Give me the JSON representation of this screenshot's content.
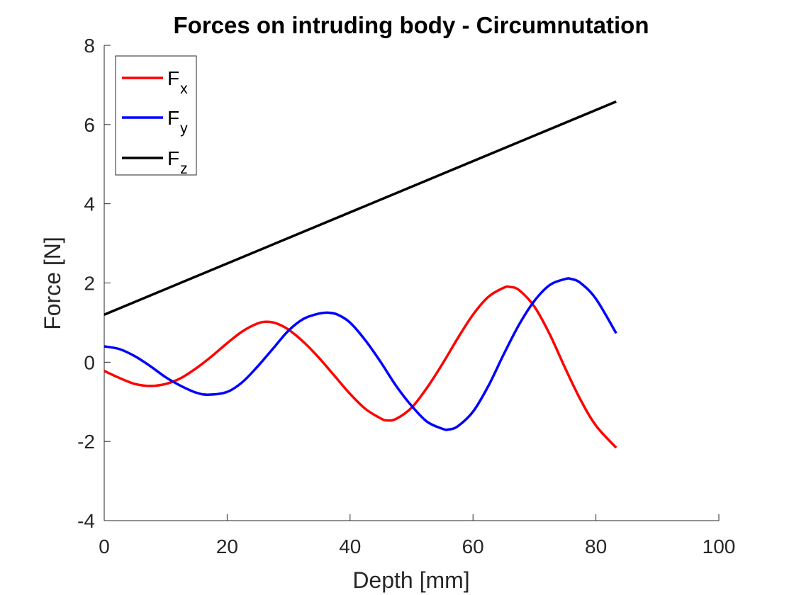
{
  "chart_data": {
    "type": "line",
    "title": "Forces on intruding body - Circumnutation",
    "xlabel": "Depth [mm]",
    "ylabel": "Force [N]",
    "xlim": [
      0,
      100
    ],
    "ylim": [
      -4,
      8
    ],
    "xticks": [
      "0",
      "20",
      "40",
      "60",
      "80",
      "100"
    ],
    "yticks": [
      "-4",
      "-2",
      "0",
      "2",
      "4",
      "6",
      "8"
    ],
    "grid": false,
    "legend_position": "top-left",
    "series": [
      {
        "name": "F",
        "subscript": "x",
        "color": "#ff0000",
        "x": [
          0,
          2.5,
          5,
          7.5,
          10,
          12.5,
          15,
          17.5,
          20,
          22.5,
          25,
          26.5,
          28,
          30,
          32.5,
          35,
          37.5,
          40,
          42.5,
          45,
          46,
          47.5,
          50,
          52.5,
          55,
          57.5,
          60,
          62.5,
          65,
          66,
          67.5,
          70,
          72.5,
          75,
          77.5,
          80,
          83.3
        ],
        "y": [
          -0.22,
          -0.4,
          -0.55,
          -0.6,
          -0.55,
          -0.4,
          -0.15,
          0.15,
          0.48,
          0.78,
          0.98,
          1.02,
          0.98,
          0.82,
          0.5,
          0.1,
          -0.35,
          -0.8,
          -1.18,
          -1.42,
          -1.47,
          -1.43,
          -1.15,
          -0.65,
          -0.05,
          0.6,
          1.2,
          1.65,
          1.88,
          1.9,
          1.82,
          1.4,
          0.7,
          -0.15,
          -0.95,
          -1.6,
          -2.16
        ]
      },
      {
        "name": "F",
        "subscript": "y",
        "color": "#0000ff",
        "x": [
          0,
          2.5,
          5,
          7.5,
          10,
          12.5,
          15,
          17,
          20,
          22.5,
          25,
          27.5,
          30,
          32.5,
          35,
          36.5,
          38,
          40,
          42.5,
          45,
          47.5,
          50,
          52.5,
          55,
          56,
          57.5,
          60,
          62.5,
          65,
          67.5,
          70,
          72.5,
          75,
          76,
          77.5,
          80,
          83.3
        ],
        "y": [
          0.4,
          0.33,
          0.15,
          -0.1,
          -0.38,
          -0.6,
          -0.77,
          -0.82,
          -0.75,
          -0.5,
          -0.1,
          0.35,
          0.8,
          1.1,
          1.23,
          1.25,
          1.2,
          1.0,
          0.55,
          0.0,
          -0.6,
          -1.1,
          -1.5,
          -1.68,
          -1.7,
          -1.62,
          -1.25,
          -0.6,
          0.2,
          0.95,
          1.55,
          1.95,
          2.1,
          2.1,
          2.0,
          1.6,
          0.73
        ]
      },
      {
        "name": "F",
        "subscript": "z",
        "color": "#000000",
        "x": [
          0,
          83.3
        ],
        "y": [
          1.2,
          6.58
        ]
      }
    ]
  }
}
